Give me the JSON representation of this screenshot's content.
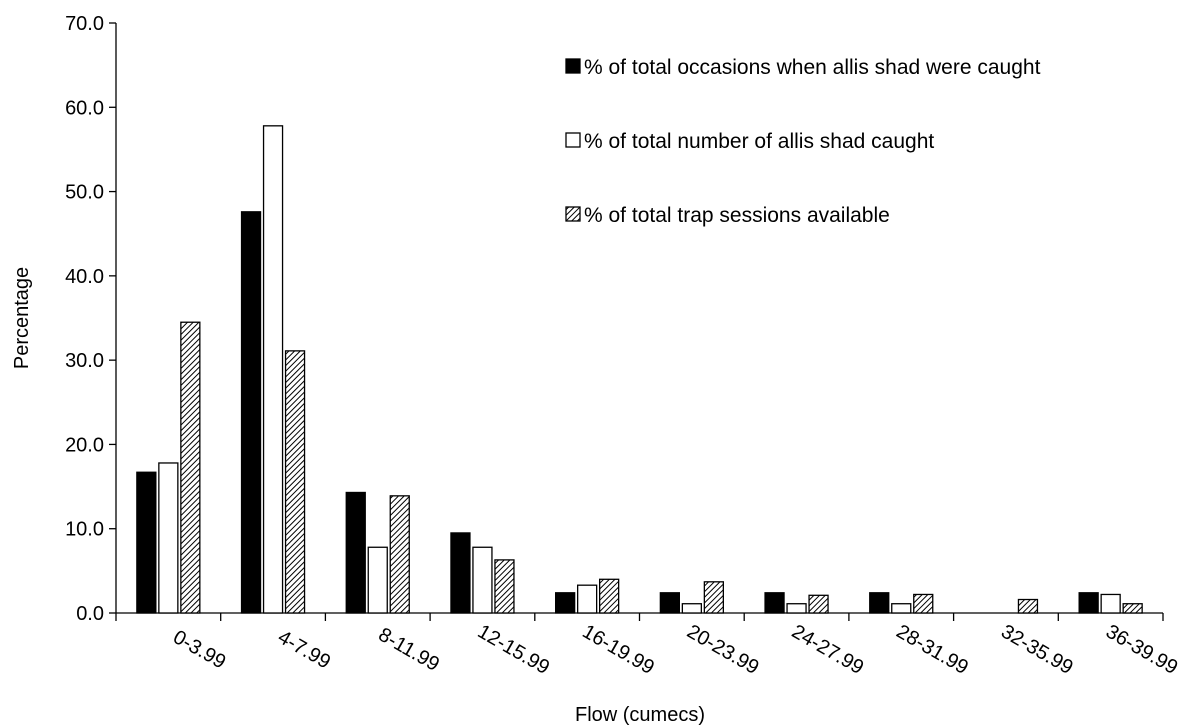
{
  "chart_data": {
    "type": "bar",
    "title": "",
    "xlabel": "Flow (cumecs)",
    "ylabel": "Percentage",
    "ylim": [
      0,
      70
    ],
    "ytick_step": 10,
    "ytick_labels": [
      "0.0",
      "10.0",
      "20.0",
      "30.0",
      "40.0",
      "50.0",
      "60.0",
      "70.0"
    ],
    "grid": false,
    "legend_position": "top-right",
    "categories": [
      "0-3.99",
      "4-7.99",
      "8-11.99",
      "12-15.99",
      "16-19.99",
      "20-23.99",
      "24-27.99",
      "28-31.99",
      "32-35.99",
      "36-39.99"
    ],
    "series": [
      {
        "name": "% of total occasions when allis shad were caught",
        "fill": "solid",
        "color": "#000000",
        "values": [
          16.7,
          47.6,
          14.3,
          9.5,
          2.4,
          2.4,
          2.4,
          2.4,
          0.0,
          2.4
        ]
      },
      {
        "name": "% of total number of allis shad caught",
        "fill": "empty",
        "color": "#ffffff",
        "values": [
          17.8,
          57.8,
          7.8,
          7.8,
          3.3,
          1.1,
          1.1,
          1.1,
          0.0,
          2.2
        ]
      },
      {
        "name": "% of total trap sessions available",
        "fill": "hatched",
        "color": "#000000",
        "values": [
          34.5,
          31.1,
          13.9,
          6.3,
          4.0,
          3.7,
          2.1,
          2.2,
          1.6,
          1.1
        ]
      }
    ]
  }
}
